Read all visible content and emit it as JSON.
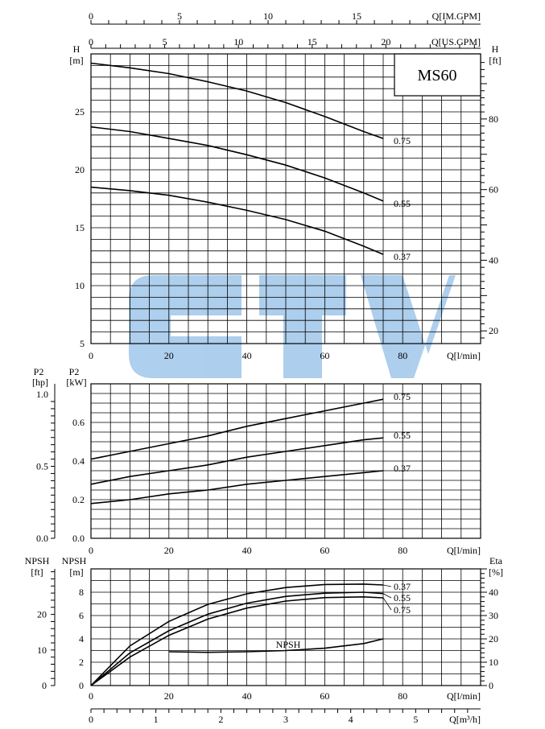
{
  "chart_data": [
    {
      "type": "line",
      "panel": "head",
      "model_label": "MS60",
      "xlabel": "Q[l/min]",
      "x_ticks": [
        0,
        20,
        40,
        60,
        80
      ],
      "xlim": [
        0,
        100
      ],
      "ylabel_left": "H",
      "ylabel_left_unit": "[m]",
      "ylim": [
        5,
        30
      ],
      "y_ticks": [
        5,
        10,
        15,
        20,
        25
      ],
      "ylabel_right": "H",
      "ylabel_right_unit": "[ft]",
      "y_right_ticks": [
        20,
        40,
        60,
        80
      ],
      "top_axes": [
        {
          "label": "Q[IM.GPM]",
          "ticks": [
            0,
            5,
            10,
            15
          ]
        },
        {
          "label": "Q[US.GPM]",
          "ticks": [
            0,
            5,
            10,
            15,
            20
          ]
        }
      ],
      "grid": true,
      "series": [
        {
          "name": "0.75",
          "x": [
            0,
            10,
            20,
            30,
            40,
            50,
            60,
            70,
            75
          ],
          "y": [
            29.2,
            28.8,
            28.3,
            27.6,
            26.8,
            25.8,
            24.6,
            23.3,
            22.7
          ]
        },
        {
          "name": "0.55",
          "x": [
            0,
            10,
            20,
            30,
            40,
            50,
            60,
            70,
            75
          ],
          "y": [
            23.7,
            23.3,
            22.7,
            22.1,
            21.3,
            20.4,
            19.3,
            18.0,
            17.3
          ]
        },
        {
          "name": "0.37",
          "x": [
            0,
            10,
            20,
            30,
            40,
            50,
            60,
            70,
            75
          ],
          "y": [
            18.5,
            18.2,
            17.8,
            17.2,
            16.5,
            15.7,
            14.7,
            13.4,
            12.7
          ]
        }
      ]
    },
    {
      "type": "line",
      "panel": "power",
      "xlabel": "Q[l/min]",
      "x_ticks": [
        0,
        20,
        40,
        60,
        80
      ],
      "xlim": [
        0,
        100
      ],
      "ylabel_left": "P2",
      "ylabel_left_unit": "[kW]",
      "ylim": [
        0,
        0.8
      ],
      "y_ticks": [
        "0.0",
        "0.2",
        "0.4",
        "0.6"
      ],
      "ylabel_outer": "P2",
      "ylabel_outer_unit": "[hp]",
      "y_outer_ticks": [
        "0.0",
        "0.5",
        "1.0"
      ],
      "grid": true,
      "series": [
        {
          "name": "0.75",
          "x": [
            0,
            10,
            20,
            30,
            40,
            50,
            60,
            70,
            75
          ],
          "y": [
            0.41,
            0.45,
            0.49,
            0.53,
            0.58,
            0.62,
            0.66,
            0.7,
            0.72
          ]
        },
        {
          "name": "0.55",
          "x": [
            0,
            10,
            20,
            30,
            40,
            50,
            60,
            70,
            75
          ],
          "y": [
            0.28,
            0.32,
            0.35,
            0.38,
            0.42,
            0.45,
            0.48,
            0.51,
            0.52
          ]
        },
        {
          "name": "0.37",
          "x": [
            0,
            10,
            20,
            30,
            40,
            50,
            60,
            70,
            75
          ],
          "y": [
            0.18,
            0.2,
            0.23,
            0.25,
            0.28,
            0.3,
            0.32,
            0.34,
            0.35
          ]
        }
      ]
    },
    {
      "type": "line",
      "panel": "npsh-efficiency",
      "xlabel": "Q[l/min]",
      "x_ticks": [
        0,
        20,
        40,
        60,
        80
      ],
      "xlim": [
        0,
        100
      ],
      "ylabel_left": "NPSH",
      "ylabel_left_unit": "[m]",
      "ylim": [
        0,
        10
      ],
      "y_ticks": [
        0,
        2,
        4,
        6,
        8
      ],
      "ylabel_outer": "NPSH",
      "ylabel_outer_unit": "[ft]",
      "y_outer_ticks": [
        0,
        10,
        20
      ],
      "ylabel_right": "Eta",
      "ylabel_right_unit": "[%]",
      "y_right_ticks": [
        0,
        10,
        20,
        30,
        40
      ],
      "bottom_axis": {
        "label": "Q[m³/h]",
        "ticks": [
          0,
          1,
          2,
          3,
          4,
          5
        ],
        "max": 6
      },
      "grid": true,
      "series": [
        {
          "name": "0.37",
          "x": [
            0,
            10,
            20,
            30,
            40,
            50,
            60,
            70,
            75
          ],
          "y_eta": [
            0,
            17,
            27.5,
            34.8,
            39.3,
            42,
            43.3,
            43.5,
            43.1
          ]
        },
        {
          "name": "0.55",
          "x": [
            0,
            10,
            20,
            30,
            40,
            50,
            60,
            70,
            75
          ],
          "y_eta": [
            0,
            14,
            23.5,
            30.6,
            35.3,
            38.2,
            39.6,
            40,
            39.4
          ]
        },
        {
          "name": "0.75",
          "x": [
            0,
            10,
            20,
            30,
            40,
            50,
            60,
            70,
            75
          ],
          "y_eta": [
            0,
            12.2,
            21.5,
            28.5,
            33.2,
            36.2,
            37.7,
            38,
            37.6
          ]
        },
        {
          "name": "NPSH",
          "x": [
            20,
            30,
            40,
            50,
            60,
            70,
            75
          ],
          "y": [
            2.9,
            2.85,
            2.9,
            3.0,
            3.2,
            3.6,
            4.0
          ]
        }
      ]
    }
  ]
}
